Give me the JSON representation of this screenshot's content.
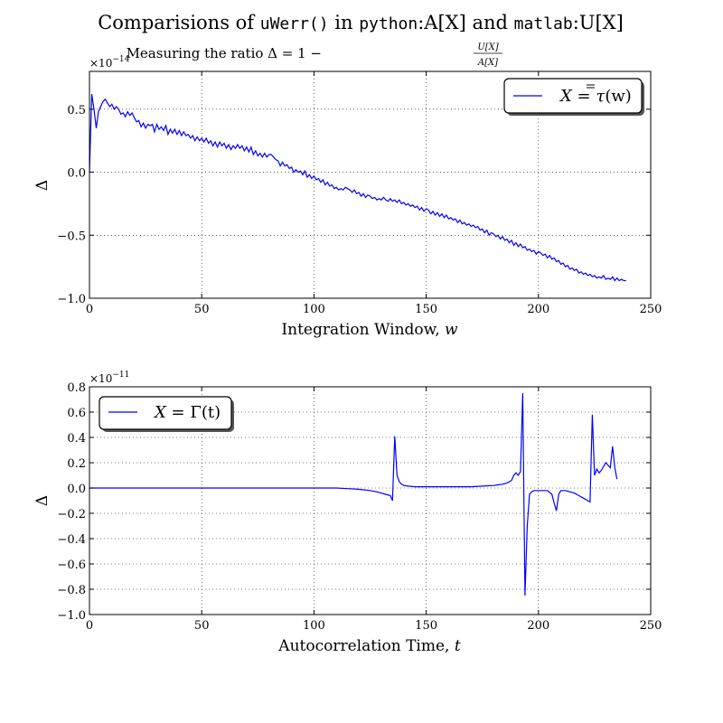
{
  "figure": {
    "title": {
      "p1": "Comparisions of ",
      "p2": "uWerr()",
      "p3": " in ",
      "p4": "python",
      "p5": ":A[X] and ",
      "p6": "matlab",
      "p7": ":U[X]"
    }
  },
  "chart_data": [
    {
      "type": "line",
      "title": "Measuring the ratio Δ = 1 − U[X]/A[X]",
      "title_parts": {
        "lead": "Measuring the ratio Δ = 1 − ",
        "num": "U[X]",
        "den": "A[X]"
      },
      "xlabel": "Integration Window, w",
      "xlabel_parts": {
        "text": "Integration Window, ",
        "var": "w"
      },
      "ylabel": "Δ",
      "y_multiplier": "×10⁻¹⁴",
      "y_multiplier_parts": {
        "base": "×10",
        "exp": "−14"
      },
      "xlim": [
        0,
        250
      ],
      "ylim": [
        -1.0,
        0.8
      ],
      "xticks": [
        0,
        50,
        100,
        150,
        200,
        250
      ],
      "xtick_labels": [
        "0",
        "50",
        "100",
        "150",
        "200",
        "250"
      ],
      "yticks": [
        -1.0,
        -0.5,
        0.0,
        0.5
      ],
      "ytick_labels": [
        "−1.0",
        "−0.5",
        "0.0",
        "0.5"
      ],
      "grid": true,
      "legend_position": "upper-right",
      "series": [
        {
          "name": "X = τ̄̄(w)",
          "name_parts": {
            "lhs": "X = ",
            "var": "τ",
            "rhs": "(w)"
          },
          "color": "#0000ff",
          "x_start": 0,
          "x_step": 1,
          "y": [
            0.0,
            0.62,
            0.5,
            0.35,
            0.48,
            0.52,
            0.56,
            0.58,
            0.55,
            0.52,
            0.54,
            0.5,
            0.52,
            0.5,
            0.46,
            0.47,
            0.44,
            0.48,
            0.45,
            0.47,
            0.43,
            0.4,
            0.41,
            0.36,
            0.39,
            0.35,
            0.38,
            0.37,
            0.38,
            0.32,
            0.38,
            0.34,
            0.36,
            0.33,
            0.37,
            0.3,
            0.34,
            0.31,
            0.34,
            0.3,
            0.33,
            0.29,
            0.32,
            0.29,
            0.3,
            0.27,
            0.29,
            0.25,
            0.28,
            0.25,
            0.27,
            0.24,
            0.27,
            0.23,
            0.25,
            0.21,
            0.24,
            0.2,
            0.24,
            0.21,
            0.23,
            0.19,
            0.22,
            0.18,
            0.21,
            0.19,
            0.22,
            0.19,
            0.21,
            0.17,
            0.2,
            0.16,
            0.2,
            0.14,
            0.17,
            0.13,
            0.15,
            0.12,
            0.15,
            0.12,
            0.14,
            0.14,
            0.12,
            0.1,
            0.09,
            0.05,
            0.08,
            0.05,
            0.06,
            0.03,
            0.04,
            0.0,
            0.02,
            0.0,
            0.01,
            -0.02,
            0.01,
            -0.04,
            -0.02,
            -0.05,
            -0.03,
            -0.06,
            -0.05,
            -0.08,
            -0.06,
            -0.1,
            -0.08,
            -0.11,
            -0.1,
            -0.13,
            -0.12,
            -0.14,
            -0.13,
            -0.14,
            -0.12,
            -0.13,
            -0.14,
            -0.16,
            -0.14,
            -0.17,
            -0.16,
            -0.19,
            -0.17,
            -0.2,
            -0.18,
            -0.19,
            -0.21,
            -0.2,
            -0.22,
            -0.21,
            -0.22,
            -0.2,
            -0.22,
            -0.23,
            -0.21,
            -0.23,
            -0.22,
            -0.24,
            -0.22,
            -0.25,
            -0.24,
            -0.26,
            -0.25,
            -0.27,
            -0.26,
            -0.28,
            -0.27,
            -0.3,
            -0.28,
            -0.31,
            -0.29,
            -0.3,
            -0.33,
            -0.31,
            -0.34,
            -0.32,
            -0.35,
            -0.33,
            -0.36,
            -0.34,
            -0.37,
            -0.36,
            -0.38,
            -0.37,
            -0.4,
            -0.38,
            -0.41,
            -0.4,
            -0.42,
            -0.41,
            -0.43,
            -0.42,
            -0.44,
            -0.43,
            -0.46,
            -0.45,
            -0.48,
            -0.46,
            -0.5,
            -0.48,
            -0.49,
            -0.51,
            -0.5,
            -0.53,
            -0.51,
            -0.54,
            -0.53,
            -0.56,
            -0.54,
            -0.58,
            -0.56,
            -0.59,
            -0.57,
            -0.6,
            -0.59,
            -0.62,
            -0.61,
            -0.63,
            -0.62,
            -0.65,
            -0.63,
            -0.64,
            -0.66,
            -0.65,
            -0.68,
            -0.66,
            -0.69,
            -0.68,
            -0.71,
            -0.7,
            -0.73,
            -0.72,
            -0.75,
            -0.74,
            -0.77,
            -0.76,
            -0.78,
            -0.77,
            -0.8,
            -0.79,
            -0.81,
            -0.8,
            -0.82,
            -0.81,
            -0.83,
            -0.82,
            -0.84,
            -0.83,
            -0.84,
            -0.82,
            -0.85,
            -0.84,
            -0.85,
            -0.83,
            -0.86,
            -0.84,
            -0.86,
            -0.85,
            -0.86,
            -0.86
          ]
        }
      ]
    },
    {
      "type": "line",
      "title": "",
      "xlabel": "Autocorrelation Time, t",
      "xlabel_parts": {
        "text": "Autocorrelation Time, ",
        "var": "t"
      },
      "ylabel": "Δ",
      "y_multiplier": "×10⁻¹¹",
      "y_multiplier_parts": {
        "base": "×10",
        "exp": "−11"
      },
      "xlim": [
        0,
        250
      ],
      "ylim": [
        -1.0,
        0.8
      ],
      "xticks": [
        0,
        50,
        100,
        150,
        200,
        250
      ],
      "xtick_labels": [
        "0",
        "50",
        "100",
        "150",
        "200",
        "250"
      ],
      "yticks": [
        -1.0,
        -0.8,
        -0.6,
        -0.4,
        -0.2,
        0.0,
        0.2,
        0.4,
        0.6,
        0.8
      ],
      "ytick_labels": [
        "−1.0",
        "−0.8",
        "−0.6",
        "−0.4",
        "−0.2",
        "0.0",
        "0.2",
        "0.4",
        "0.6",
        "0.8"
      ],
      "grid": true,
      "legend_position": "upper-left",
      "series": [
        {
          "name": "X = Γ(t)",
          "name_parts": {
            "lhs": "X = ",
            "var": "Γ",
            "rhs": "(t)"
          },
          "color": "#0000ff",
          "x": [
            0,
            20,
            40,
            60,
            80,
            100,
            110,
            115,
            120,
            125,
            128,
            130,
            132,
            134,
            135,
            136,
            137,
            138,
            139,
            140,
            142,
            145,
            150,
            160,
            170,
            175,
            180,
            182,
            184,
            186,
            188,
            189,
            190,
            191,
            192,
            193,
            194,
            195,
            196,
            197,
            198,
            200,
            204,
            206,
            207,
            208,
            209,
            210,
            212,
            214,
            216,
            218,
            220,
            222,
            223,
            224,
            225,
            226,
            227,
            228,
            230,
            232,
            233,
            234,
            235
          ],
          "y": [
            0.0,
            0.0,
            0.0,
            0.0,
            0.0,
            0.0,
            0.0,
            -0.005,
            -0.01,
            -0.02,
            -0.03,
            -0.04,
            -0.05,
            -0.06,
            -0.1,
            0.41,
            0.1,
            0.05,
            0.03,
            0.02,
            0.015,
            0.01,
            0.01,
            0.01,
            0.01,
            0.015,
            0.02,
            0.025,
            0.03,
            0.04,
            0.06,
            0.1,
            0.12,
            0.1,
            0.13,
            0.75,
            -0.85,
            -0.3,
            -0.05,
            -0.03,
            -0.02,
            -0.02,
            -0.02,
            -0.05,
            -0.12,
            -0.18,
            -0.05,
            -0.02,
            -0.02,
            -0.03,
            -0.04,
            -0.06,
            -0.08,
            -0.1,
            -0.11,
            0.58,
            0.1,
            0.15,
            0.12,
            0.14,
            0.2,
            0.16,
            0.33,
            0.16,
            0.07
          ]
        }
      ]
    }
  ]
}
